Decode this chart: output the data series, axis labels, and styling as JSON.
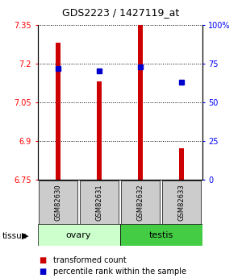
{
  "title": "GDS2223 / 1427119_at",
  "samples": [
    "GSM82630",
    "GSM82631",
    "GSM82632",
    "GSM82633"
  ],
  "transformed_counts": [
    7.28,
    7.13,
    7.35,
    6.87
  ],
  "percentile_ranks": [
    72,
    70,
    73,
    63
  ],
  "ylim_left": [
    6.75,
    7.35
  ],
  "ylim_right": [
    0,
    100
  ],
  "yticks_left": [
    6.75,
    6.9,
    7.05,
    7.2,
    7.35
  ],
  "yticks_right": [
    0,
    25,
    50,
    75,
    100
  ],
  "ytick_labels_right": [
    "0",
    "25",
    "50",
    "75",
    "100%"
  ],
  "bar_color": "#cc0000",
  "dot_color": "#0000cc",
  "bar_bottom": 6.75,
  "tissue_labels": [
    "ovary",
    "testis"
  ],
  "tissue_colors": [
    "#ccffcc",
    "#44cc44"
  ],
  "sample_box_color": "#cccccc",
  "legend_red_label": "transformed count",
  "legend_blue_label": "percentile rank within the sample",
  "bar_width": 0.12
}
